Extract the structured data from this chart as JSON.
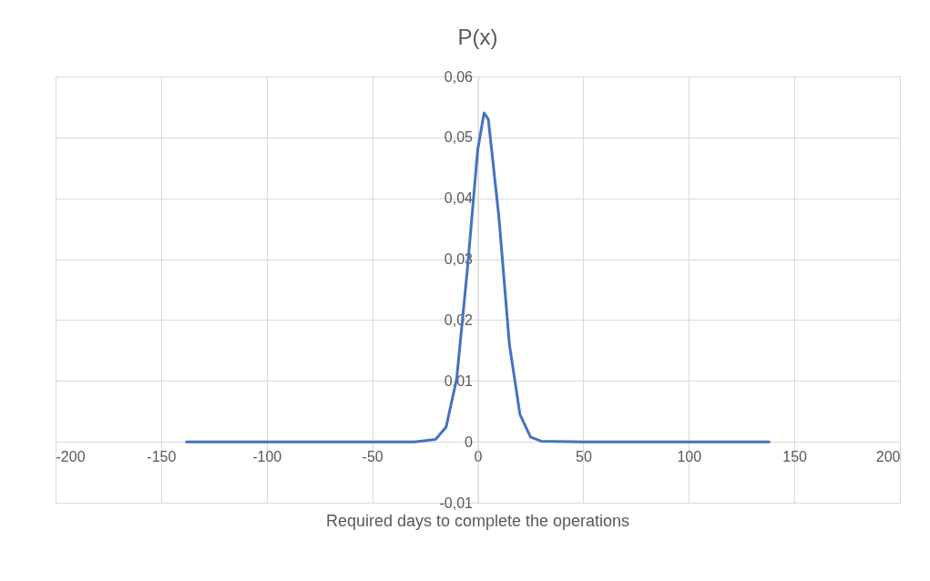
{
  "chart_data": {
    "type": "line",
    "title": "P(x)",
    "xlabel": "Required days to complete the operations",
    "x": [
      -138,
      -100,
      -50,
      -30,
      -20,
      -15,
      -10,
      -5,
      0,
      3,
      5,
      10,
      15,
      20,
      25,
      30,
      50,
      100,
      138
    ],
    "series": [
      {
        "color": "#4472c4",
        "values": [
          0,
          0,
          0,
          0,
          0.0004,
          0.0024,
          0.0103,
          0.028,
          0.048,
          0.054,
          0.053,
          0.037,
          0.016,
          0.0045,
          0.0008,
          0.0001,
          0,
          0,
          0
        ]
      }
    ],
    "xlim": [
      -200,
      200
    ],
    "xticks": [
      -200,
      -150,
      -100,
      -50,
      0,
      50,
      100,
      150,
      200
    ],
    "ylim": [
      -0.01,
      0.06
    ],
    "yticks": [
      {
        "value": -0.01,
        "label": "-0,01"
      },
      0,
      {
        "value": 0.01,
        "label": "0,01"
      },
      {
        "value": 0.02,
        "label": "0,02"
      },
      {
        "value": 0.03,
        "label": "0,03"
      },
      {
        "value": 0.04,
        "label": "0,04"
      },
      {
        "value": 0.05,
        "label": "0,05"
      },
      {
        "value": 0.06,
        "label": "0,06"
      }
    ],
    "grid": true,
    "marker": "none",
    "line_style": "solid"
  }
}
